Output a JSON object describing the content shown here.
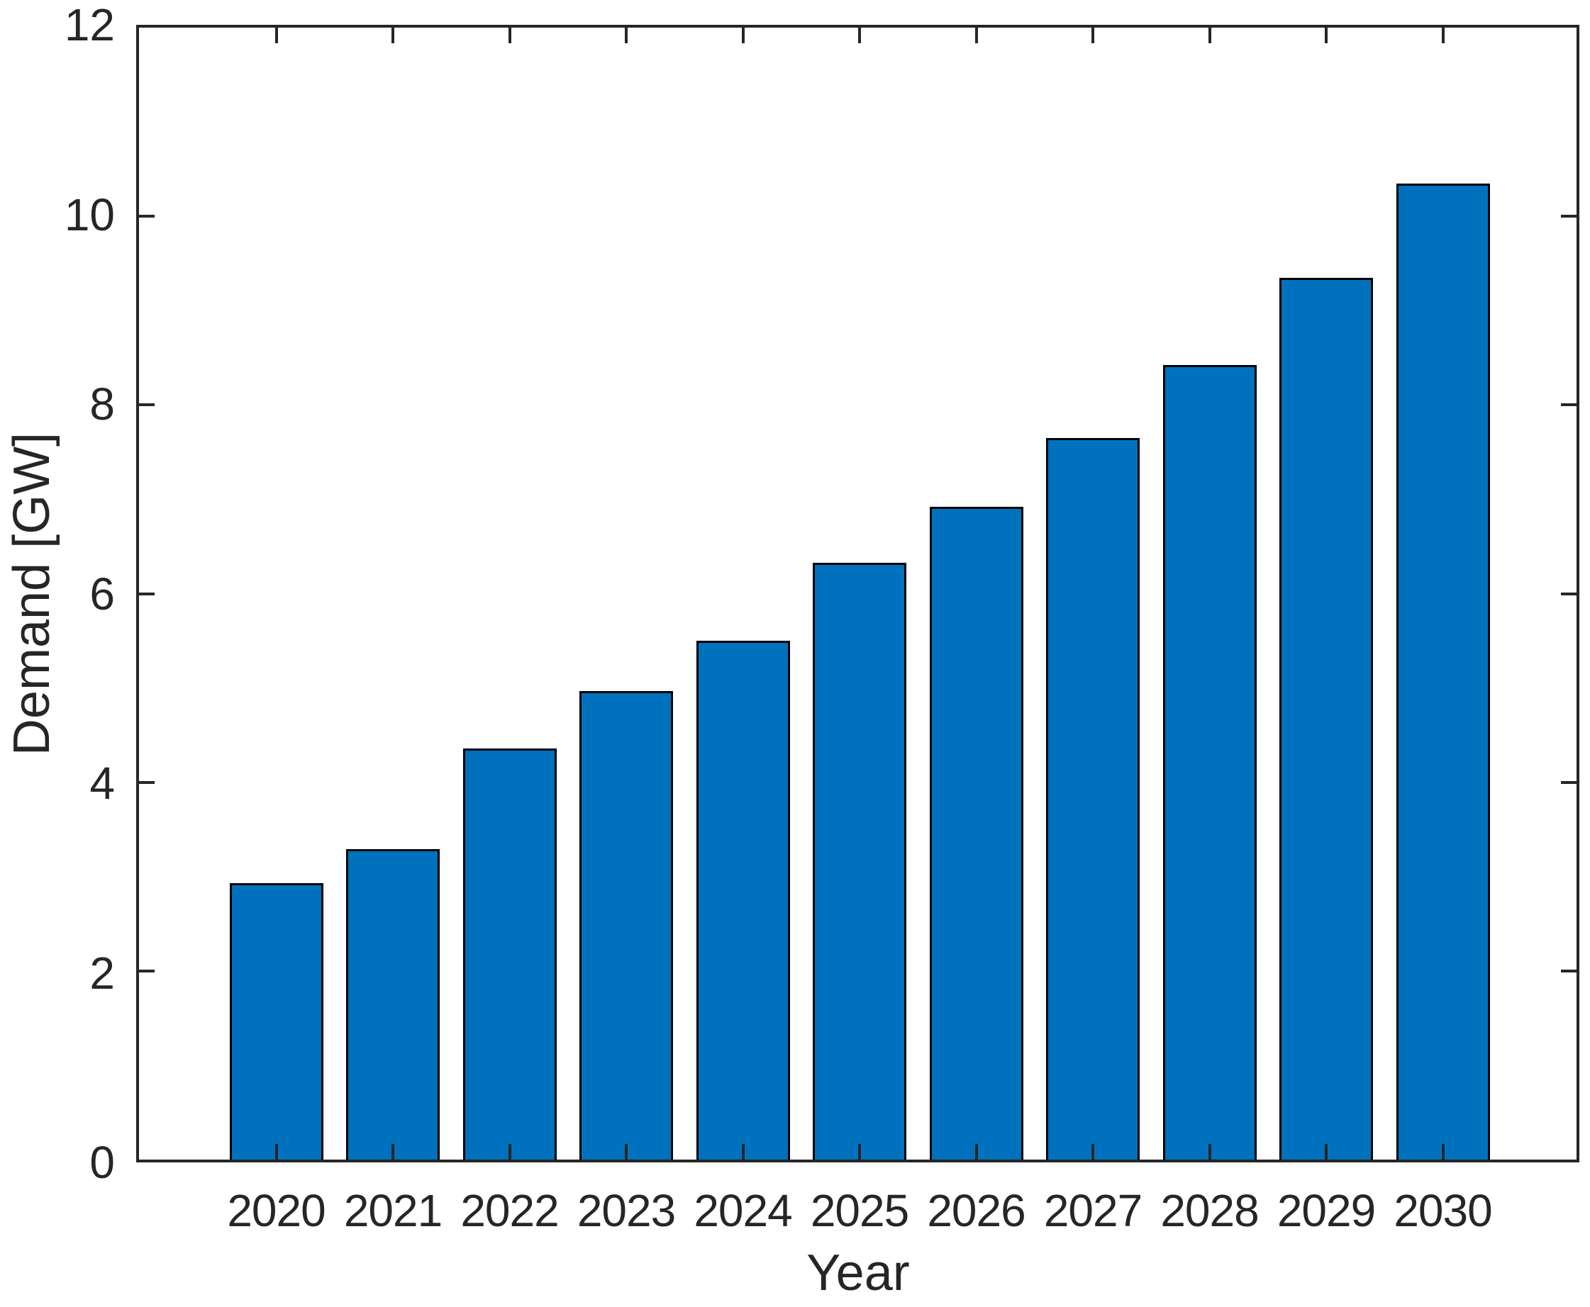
{
  "figure": {
    "background_color": "#ffffff",
    "axis_color": "#262626",
    "text_color": "#262626"
  },
  "chart_data": {
    "type": "bar",
    "title": "",
    "xlabel": "Year",
    "ylabel": "Demand [GW]",
    "categories": [
      "2020",
      "2021",
      "2022",
      "2023",
      "2024",
      "2025",
      "2026",
      "2027",
      "2028",
      "2029",
      "2030"
    ],
    "values": [
      2.93,
      3.29,
      4.36,
      4.97,
      5.5,
      6.33,
      6.92,
      7.65,
      8.42,
      9.35,
      10.35
    ],
    "ylim": [
      0,
      12
    ],
    "yticks": [
      0,
      2,
      4,
      6,
      8,
      10,
      12
    ],
    "ytick_labels": [
      "0",
      "2",
      "4",
      "6",
      "8",
      "10",
      "12"
    ],
    "bar_fill_color": "#0072BD",
    "bar_edge_color": "#000000",
    "grid": false,
    "legend": null,
    "box": true,
    "tick_direction": "in"
  }
}
